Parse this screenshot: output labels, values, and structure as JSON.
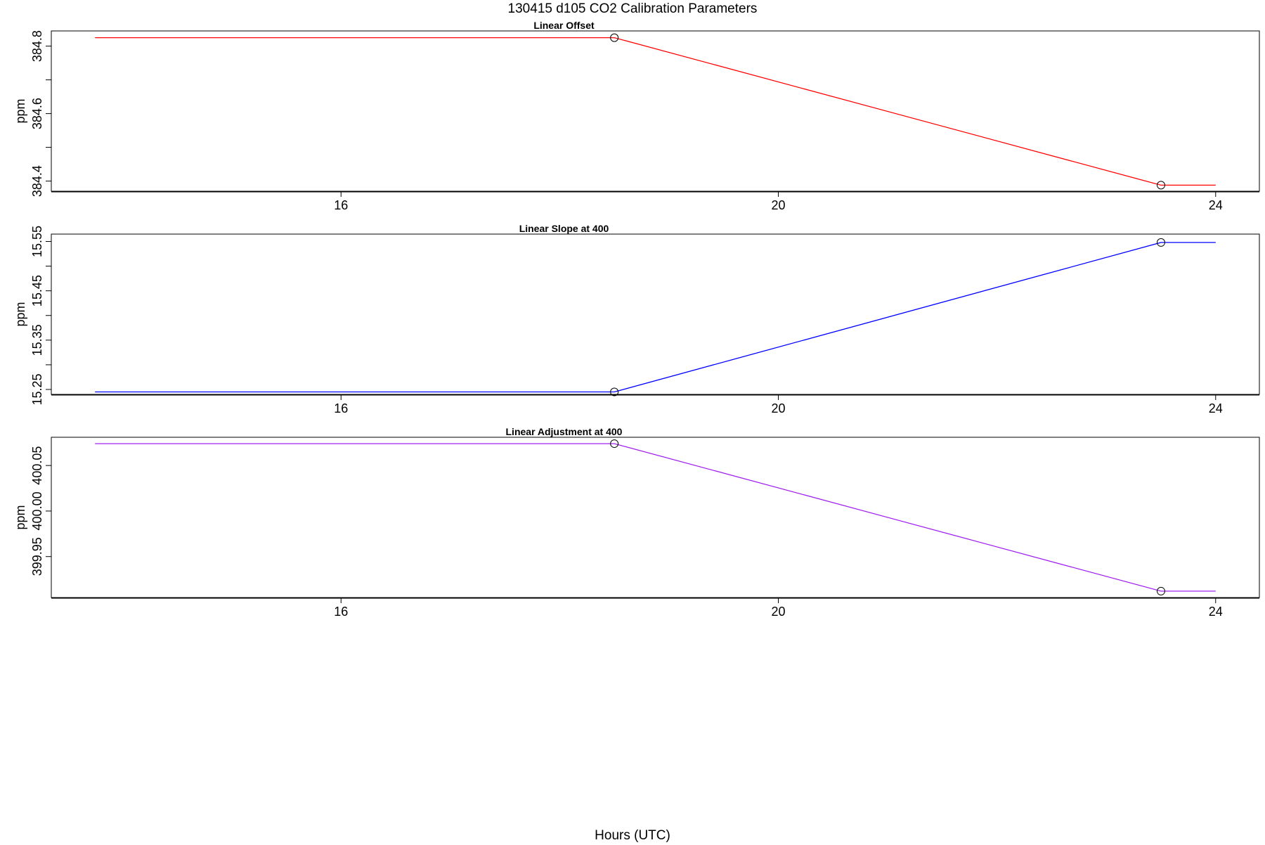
{
  "title": "130415   d105   CO2 Calibration Parameters",
  "xlabel": "Hours (UTC)",
  "chart_data": [
    {
      "type": "line",
      "title": "Linear Offset",
      "ylabel": "ppm",
      "color": "#ff0000",
      "xlim": [
        13.35,
        24.4
      ],
      "ylim": [
        384.37,
        384.845
      ],
      "xticks": [
        16,
        20,
        24
      ],
      "yticks": [
        384.4,
        384.5,
        384.6,
        384.7,
        384.8
      ],
      "ytick_labels": [
        "384.4",
        "",
        "384.6",
        "",
        "384.8"
      ],
      "x": [
        13.75,
        18.5,
        23.5,
        24.0
      ],
      "y": [
        384.825,
        384.825,
        384.388,
        384.388
      ],
      "markers_x": [
        18.5,
        23.5
      ],
      "markers_y": [
        384.825,
        384.388
      ]
    },
    {
      "type": "line",
      "title": "Linear Slope at 400",
      "ylabel": "ppm",
      "color": "#0000ff",
      "xlim": [
        13.35,
        24.4
      ],
      "ylim": [
        15.24,
        15.565
      ],
      "xticks": [
        16,
        20,
        24
      ],
      "yticks": [
        15.25,
        15.3,
        15.35,
        15.4,
        15.45,
        15.5,
        15.55
      ],
      "ytick_labels": [
        "15.25",
        "",
        "15.35",
        "",
        "15.45",
        "",
        "15.55"
      ],
      "x": [
        13.75,
        18.5,
        23.5,
        24.0
      ],
      "y": [
        15.245,
        15.245,
        15.548,
        15.548
      ],
      "markers_x": [
        18.5,
        23.5
      ],
      "markers_y": [
        15.245,
        15.548
      ]
    },
    {
      "type": "line",
      "title": "Linear Adjustment at 400",
      "ylabel": "ppm",
      "color": "#a020f0",
      "xlim": [
        13.35,
        24.4
      ],
      "ylim": [
        399.905,
        400.081
      ],
      "xticks": [
        16,
        20,
        24
      ],
      "yticks": [
        399.95,
        400.0,
        400.05
      ],
      "ytick_labels": [
        "399.95",
        "400.00",
        "400.05"
      ],
      "x": [
        13.75,
        18.5,
        23.5,
        24.0
      ],
      "y": [
        400.074,
        400.074,
        399.912,
        399.912
      ],
      "markers_x": [
        18.5,
        23.5
      ],
      "markers_y": [
        400.074,
        399.912
      ]
    }
  ]
}
